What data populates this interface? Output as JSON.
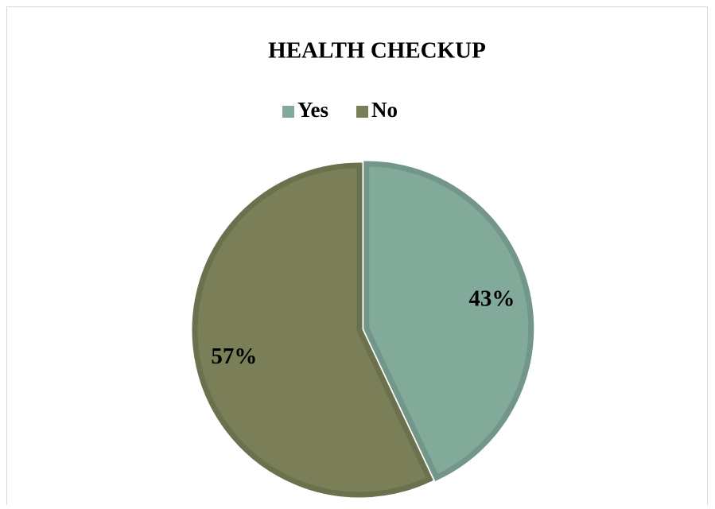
{
  "chart_data": {
    "type": "pie",
    "title": "HEALTH CHECKUP",
    "categories": [
      "Yes",
      "No"
    ],
    "values": [
      43,
      57
    ],
    "value_labels": [
      "43%",
      "57%"
    ],
    "colors": [
      "#82aa9a",
      "#7a7f57"
    ],
    "legend": "top"
  }
}
